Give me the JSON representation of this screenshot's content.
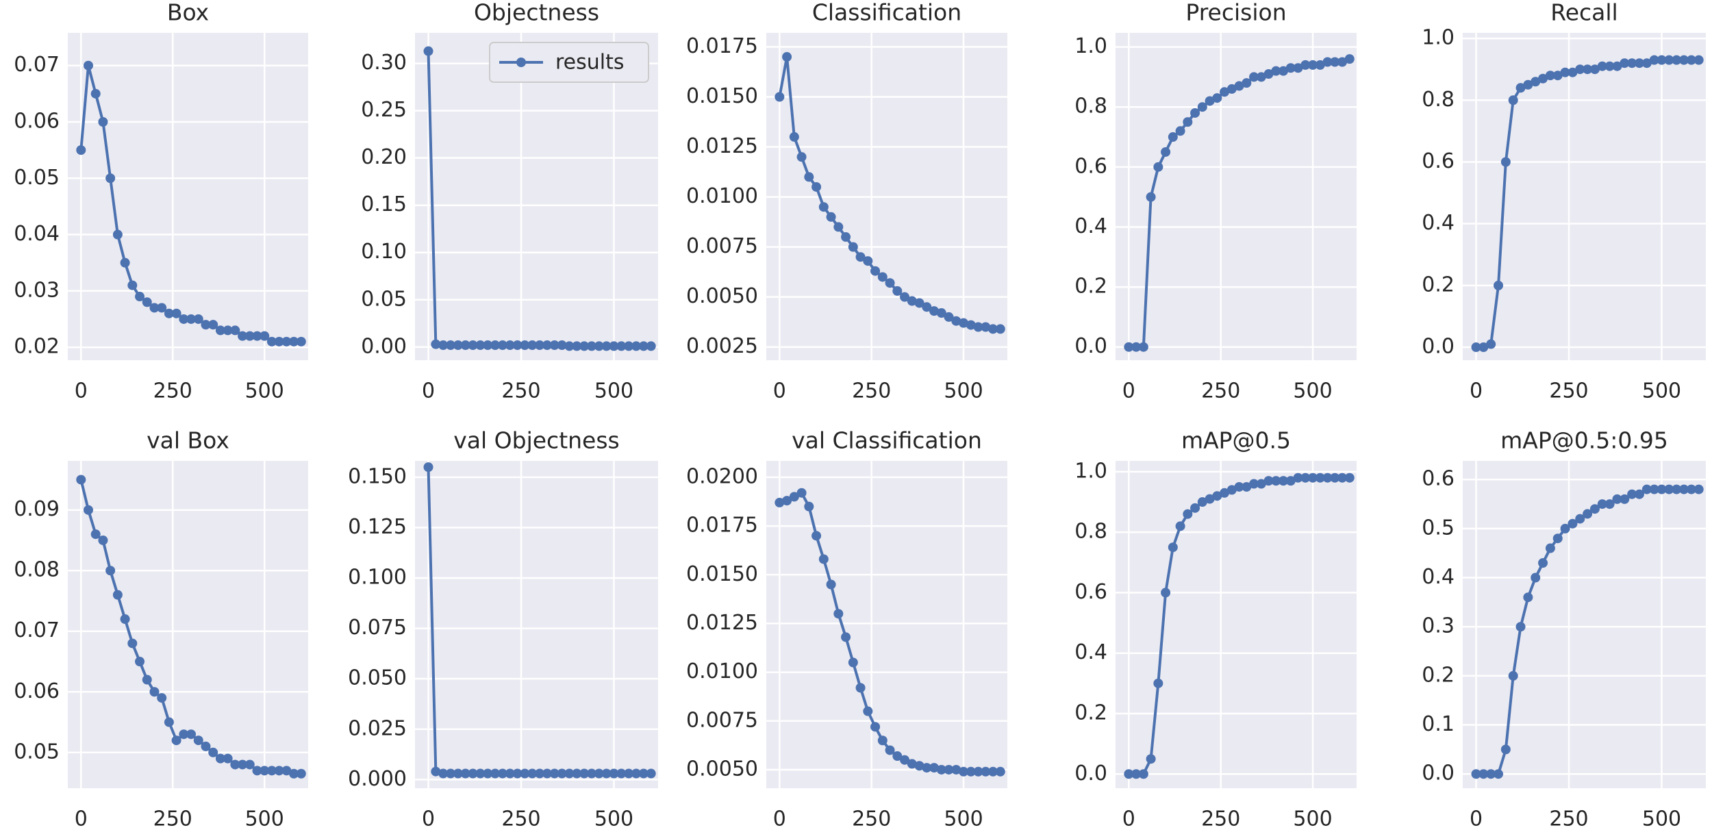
{
  "chart_data": [
    {
      "type": "line",
      "title": "Box",
      "color": "#4c72b0",
      "x": [
        0,
        20,
        40,
        60,
        80,
        100,
        120,
        140,
        160,
        180,
        200,
        220,
        240,
        260,
        280,
        300,
        320,
        340,
        360,
        380,
        400,
        420,
        440,
        460,
        480,
        500,
        520,
        540,
        560,
        580,
        600
      ],
      "values": [
        0.055,
        0.07,
        0.065,
        0.06,
        0.05,
        0.04,
        0.035,
        0.031,
        0.029,
        0.028,
        0.027,
        0.027,
        0.026,
        0.026,
        0.025,
        0.025,
        0.025,
        0.024,
        0.024,
        0.023,
        0.023,
        0.023,
        0.022,
        0.022,
        0.022,
        0.022,
        0.021,
        0.021,
        0.021,
        0.021,
        0.021
      ],
      "xlim": [
        -36,
        619
      ],
      "xticks": [
        0,
        250,
        500
      ],
      "ylim": [
        0.0177,
        0.0758
      ],
      "yticks": [
        0.02,
        0.03,
        0.04,
        0.05,
        0.06,
        0.07
      ],
      "grid": true
    },
    {
      "type": "line",
      "title": "Objectness",
      "legend": "upper right",
      "x": [
        0,
        20,
        40,
        60,
        80,
        100,
        120,
        140,
        160,
        180,
        200,
        220,
        240,
        260,
        280,
        300,
        320,
        340,
        360,
        380,
        400,
        420,
        440,
        460,
        480,
        500,
        520,
        540,
        560,
        580,
        600
      ],
      "series": [
        {
          "name": "results",
          "color": "#4c72b0",
          "values": [
            0.313,
            0.003,
            0.002,
            0.002,
            0.002,
            0.002,
            0.002,
            0.002,
            0.002,
            0.002,
            0.002,
            0.002,
            0.002,
            0.002,
            0.002,
            0.002,
            0.002,
            0.002,
            0.002,
            0.001,
            0.001,
            0.001,
            0.001,
            0.001,
            0.001,
            0.001,
            0.001,
            0.001,
            0.001,
            0.001,
            0.001
          ]
        }
      ],
      "xlim": [
        -36,
        619
      ],
      "xticks": [
        0,
        250,
        500
      ],
      "ylim": [
        -0.0139,
        0.3323
      ],
      "yticks": [
        {
          "value": 0,
          "label": "0.00"
        },
        0.05,
        {
          "value": 0.1,
          "label": "0.10"
        },
        0.15,
        {
          "value": 0.2,
          "label": "0.20"
        },
        0.25,
        {
          "value": 0.3,
          "label": "0.30"
        }
      ],
      "grid": true
    },
    {
      "type": "line",
      "title": "Classification",
      "color": "#4c72b0",
      "x": [
        0,
        20,
        40,
        60,
        80,
        100,
        120,
        140,
        160,
        180,
        200,
        220,
        240,
        260,
        280,
        300,
        320,
        340,
        360,
        380,
        400,
        420,
        440,
        460,
        480,
        500,
        520,
        540,
        560,
        580,
        600
      ],
      "values": [
        0.015,
        0.017,
        0.013,
        0.012,
        0.011,
        0.0105,
        0.0095,
        0.009,
        0.0085,
        0.008,
        0.0075,
        0.007,
        0.0068,
        0.0063,
        0.006,
        0.0057,
        0.0053,
        0.005,
        0.0048,
        0.0047,
        0.0045,
        0.0043,
        0.0042,
        0.004,
        0.0038,
        0.0037,
        0.0036,
        0.0035,
        0.0035,
        0.0034,
        0.0034
      ],
      "xlim": [
        -36,
        619
      ],
      "xticks": [
        0,
        250,
        500
      ],
      "ylim": [
        0.00184,
        0.0182
      ],
      "yticks": [
        0.0025,
        {
          "value": 0.005,
          "label": "0.0050"
        },
        0.0075,
        {
          "value": 0.01,
          "label": "0.0100"
        },
        0.0125,
        {
          "value": 0.015,
          "label": "0.0150"
        },
        0.0175
      ],
      "grid": true
    },
    {
      "type": "line",
      "title": "Precision",
      "color": "#4c72b0",
      "x": [
        0,
        20,
        40,
        60,
        80,
        100,
        120,
        140,
        160,
        180,
        200,
        220,
        240,
        260,
        280,
        300,
        320,
        340,
        360,
        380,
        400,
        420,
        440,
        460,
        480,
        500,
        520,
        540,
        560,
        580,
        600
      ],
      "values": [
        0,
        0,
        0,
        0.5,
        0.6,
        0.65,
        0.7,
        0.72,
        0.75,
        0.78,
        0.8,
        0.82,
        0.83,
        0.85,
        0.86,
        0.87,
        0.88,
        0.9,
        0.9,
        0.91,
        0.92,
        0.92,
        0.93,
        0.93,
        0.94,
        0.94,
        0.94,
        0.95,
        0.95,
        0.95,
        0.96
      ],
      "xlim": [
        -36,
        619
      ],
      "xticks": [
        0,
        250,
        500
      ],
      "ylim": [
        -0.044,
        1.047
      ],
      "yticks": [
        {
          "value": 0,
          "label": "0.0"
        },
        0.2,
        0.4,
        0.6,
        0.8,
        {
          "value": 1,
          "label": "1.0"
        }
      ],
      "grid": true
    },
    {
      "type": "line",
      "title": "Recall",
      "color": "#4c72b0",
      "x": [
        0,
        20,
        40,
        60,
        80,
        100,
        120,
        140,
        160,
        180,
        200,
        220,
        240,
        260,
        280,
        300,
        320,
        340,
        360,
        380,
        400,
        420,
        440,
        460,
        480,
        500,
        520,
        540,
        560,
        580,
        600
      ],
      "values": [
        0,
        0,
        0.01,
        0.2,
        0.6,
        0.8,
        0.84,
        0.85,
        0.86,
        0.87,
        0.88,
        0.88,
        0.89,
        0.89,
        0.9,
        0.9,
        0.9,
        0.91,
        0.91,
        0.91,
        0.92,
        0.92,
        0.92,
        0.92,
        0.93,
        0.93,
        0.93,
        0.93,
        0.93,
        0.93,
        0.93
      ],
      "xlim": [
        -36,
        619
      ],
      "xticks": [
        0,
        250,
        500
      ],
      "ylim": [
        -0.042,
        1.018
      ],
      "yticks": [
        {
          "value": 0,
          "label": "0.0"
        },
        0.2,
        0.4,
        0.6,
        0.8,
        {
          "value": 1,
          "label": "1.0"
        }
      ],
      "grid": true
    },
    {
      "type": "line",
      "title": "val Box",
      "color": "#4c72b0",
      "x": [
        0,
        20,
        40,
        60,
        80,
        100,
        120,
        140,
        160,
        180,
        200,
        220,
        240,
        260,
        280,
        300,
        320,
        340,
        360,
        380,
        400,
        420,
        440,
        460,
        480,
        500,
        520,
        540,
        560,
        580,
        600
      ],
      "values": [
        0.095,
        0.09,
        0.086,
        0.085,
        0.08,
        0.076,
        0.072,
        0.068,
        0.065,
        0.062,
        0.06,
        0.059,
        0.055,
        0.052,
        0.053,
        0.053,
        0.052,
        0.051,
        0.05,
        0.049,
        0.049,
        0.048,
        0.048,
        0.048,
        0.047,
        0.047,
        0.047,
        0.047,
        0.047,
        0.0465,
        0.0465
      ],
      "xlim": [
        -36,
        619
      ],
      "xticks": [
        0,
        250,
        500
      ],
      "ylim": [
        0.0441,
        0.0981
      ],
      "yticks": [
        0.05,
        0.06,
        0.07,
        0.08,
        0.09
      ],
      "grid": true
    },
    {
      "type": "line",
      "title": "val Objectness",
      "color": "#4c72b0",
      "x": [
        0,
        20,
        40,
        60,
        80,
        100,
        120,
        140,
        160,
        180,
        200,
        220,
        240,
        260,
        280,
        300,
        320,
        340,
        360,
        380,
        400,
        420,
        440,
        460,
        480,
        500,
        520,
        540,
        560,
        580,
        600
      ],
      "values": [
        0.155,
        0.004,
        0.003,
        0.003,
        0.003,
        0.003,
        0.003,
        0.003,
        0.003,
        0.003,
        0.003,
        0.003,
        0.003,
        0.003,
        0.003,
        0.003,
        0.003,
        0.003,
        0.003,
        0.003,
        0.003,
        0.003,
        0.003,
        0.003,
        0.003,
        0.003,
        0.003,
        0.003,
        0.003,
        0.003,
        0.003
      ],
      "xlim": [
        -36,
        619
      ],
      "xticks": [
        0,
        250,
        500
      ],
      "ylim": [
        -0.0043,
        0.1581
      ],
      "yticks": [
        {
          "value": 0,
          "label": "0.000"
        },
        0.025,
        {
          "value": 0.05,
          "label": "0.050"
        },
        0.075,
        {
          "value": 0.1,
          "label": "0.100"
        },
        0.125,
        {
          "value": 0.15,
          "label": "0.150"
        }
      ],
      "grid": true
    },
    {
      "type": "line",
      "title": "val Classification",
      "color": "#4c72b0",
      "x": [
        0,
        20,
        40,
        60,
        80,
        100,
        120,
        140,
        160,
        180,
        200,
        220,
        240,
        260,
        280,
        300,
        320,
        340,
        360,
        380,
        400,
        420,
        440,
        460,
        480,
        500,
        520,
        540,
        560,
        580,
        600
      ],
      "values": [
        0.0187,
        0.0188,
        0.019,
        0.0192,
        0.0185,
        0.017,
        0.0158,
        0.0145,
        0.013,
        0.0118,
        0.0105,
        0.0092,
        0.008,
        0.0072,
        0.0065,
        0.006,
        0.0057,
        0.0055,
        0.0053,
        0.0052,
        0.0051,
        0.0051,
        0.005,
        0.005,
        0.005,
        0.0049,
        0.0049,
        0.0049,
        0.0049,
        0.0049,
        0.0049
      ],
      "xlim": [
        -36,
        619
      ],
      "xticks": [
        0,
        250,
        500
      ],
      "ylim": [
        0.00405,
        0.02084
      ],
      "yticks": [
        {
          "value": 0.005,
          "label": "0.0050"
        },
        0.0075,
        {
          "value": 0.01,
          "label": "0.0100"
        },
        0.0125,
        {
          "value": 0.015,
          "label": "0.0150"
        },
        0.0175,
        {
          "value": 0.02,
          "label": "0.0200"
        }
      ],
      "grid": true
    },
    {
      "type": "line",
      "title": "mAP@0.5",
      "color": "#4c72b0",
      "x": [
        0,
        20,
        40,
        60,
        80,
        100,
        120,
        140,
        160,
        180,
        200,
        220,
        240,
        260,
        280,
        300,
        320,
        340,
        360,
        380,
        400,
        420,
        440,
        460,
        480,
        500,
        520,
        540,
        560,
        580,
        600
      ],
      "values": [
        0,
        0,
        0,
        0.05,
        0.3,
        0.6,
        0.75,
        0.82,
        0.86,
        0.88,
        0.9,
        0.91,
        0.92,
        0.93,
        0.94,
        0.95,
        0.95,
        0.96,
        0.96,
        0.97,
        0.97,
        0.97,
        0.97,
        0.98,
        0.98,
        0.98,
        0.98,
        0.98,
        0.98,
        0.98,
        0.98
      ],
      "xlim": [
        -36,
        619
      ],
      "xticks": [
        0,
        250,
        500
      ],
      "ylim": [
        -0.047,
        1.036
      ],
      "yticks": [
        {
          "value": 0,
          "label": "0.0"
        },
        0.2,
        0.4,
        0.6,
        0.8,
        {
          "value": 1,
          "label": "1.0"
        }
      ],
      "grid": true
    },
    {
      "type": "line",
      "title": "mAP@0.5:0.95",
      "color": "#4c72b0",
      "x": [
        0,
        20,
        40,
        60,
        80,
        100,
        120,
        140,
        160,
        180,
        200,
        220,
        240,
        260,
        280,
        300,
        320,
        340,
        360,
        380,
        400,
        420,
        440,
        460,
        480,
        500,
        520,
        540,
        560,
        580,
        600
      ],
      "values": [
        0,
        0,
        0,
        0,
        0.05,
        0.2,
        0.3,
        0.36,
        0.4,
        0.43,
        0.46,
        0.48,
        0.5,
        0.51,
        0.52,
        0.53,
        0.54,
        0.55,
        0.55,
        0.56,
        0.56,
        0.57,
        0.57,
        0.58,
        0.58,
        0.58,
        0.58,
        0.58,
        0.58,
        0.58,
        0.58
      ],
      "xlim": [
        -36,
        619
      ],
      "xticks": [
        0,
        250,
        500
      ],
      "ylim": [
        -0.029,
        0.638
      ],
      "yticks": [
        {
          "value": 0,
          "label": "0.0"
        },
        0.1,
        0.2,
        0.3,
        0.4,
        0.5,
        0.6
      ],
      "grid": true
    }
  ]
}
